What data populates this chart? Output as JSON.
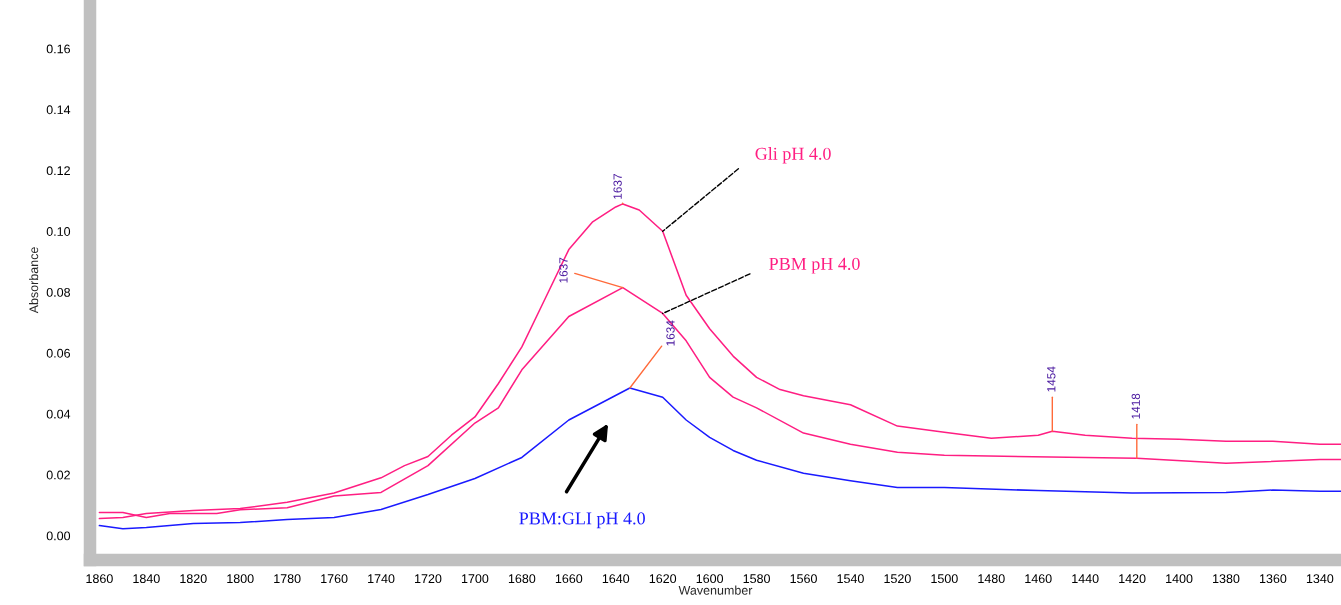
{
  "chart_data": {
    "type": "line",
    "xlabel": "Wavenumber",
    "ylabel": "Absorbance",
    "xlim": [
      1864,
      1331
    ],
    "ylim": [
      -0.008,
      0.176
    ],
    "xticks": [
      1860,
      1840,
      1820,
      1800,
      1780,
      1760,
      1740,
      1720,
      1700,
      1680,
      1660,
      1640,
      1620,
      1600,
      1580,
      1560,
      1540,
      1520,
      1500,
      1480,
      1460,
      1440,
      1420,
      1400,
      1380,
      1360,
      1340
    ],
    "yticks": [
      {
        "value": 0,
        "label": "0.00"
      },
      {
        "value": 0.02,
        "label": "0.02"
      },
      {
        "value": 0.04,
        "label": "0.04"
      },
      {
        "value": 0.06,
        "label": "0.06"
      },
      {
        "value": 0.08,
        "label": "0.08"
      },
      {
        "value": 0.1,
        "label": "0.10"
      },
      {
        "value": 0.12,
        "label": "0.12"
      },
      {
        "value": 0.14,
        "label": "0.14"
      },
      {
        "value": 0.16,
        "label": "0.16"
      }
    ],
    "grid": false,
    "legend": false,
    "marker": "none",
    "line_style": "solid",
    "series": [
      {
        "name": "Gli pH 4.0",
        "color": "#ff1e82",
        "x": [
          1860,
          1850,
          1840,
          1820,
          1800,
          1780,
          1760,
          1740,
          1730,
          1720,
          1710,
          1700,
          1690,
          1680,
          1670,
          1660,
          1650,
          1640,
          1637,
          1630,
          1620,
          1610,
          1600,
          1590,
          1580,
          1570,
          1560,
          1540,
          1520,
          1500,
          1480,
          1460,
          1454,
          1440,
          1420,
          1400,
          1380,
          1360,
          1340,
          1331
        ],
        "values": [
          0.0056,
          0.006,
          0.0073,
          0.0083,
          0.0089,
          0.011,
          0.014,
          0.019,
          0.023,
          0.026,
          0.033,
          0.039,
          0.05,
          0.062,
          0.078,
          0.094,
          0.103,
          0.108,
          0.109,
          0.107,
          0.1,
          0.079,
          0.068,
          0.059,
          0.052,
          0.048,
          0.046,
          0.043,
          0.036,
          0.034,
          0.032,
          0.033,
          0.0343,
          0.033,
          0.032,
          0.0317,
          0.031,
          0.031,
          0.03,
          0.03
        ]
      },
      {
        "name": "PBM pH 4.0",
        "color": "#ff1e82",
        "x": [
          1860,
          1850,
          1840,
          1830,
          1810,
          1800,
          1780,
          1760,
          1740,
          1720,
          1700,
          1690,
          1680,
          1660,
          1637,
          1620,
          1610,
          1600,
          1590,
          1580,
          1560,
          1540,
          1520,
          1500,
          1418,
          1380,
          1340,
          1331
        ],
        "values": [
          0.0076,
          0.0076,
          0.006,
          0.0073,
          0.0073,
          0.0085,
          0.0092,
          0.013,
          0.0142,
          0.023,
          0.037,
          0.042,
          0.0545,
          0.072,
          0.0815,
          0.073,
          0.064,
          0.052,
          0.0455,
          0.042,
          0.0337,
          0.03,
          0.0274,
          0.0264,
          0.0254,
          0.0238,
          0.025,
          0.025
        ]
      },
      {
        "name": "PBM:GLI pH 4.0",
        "color": "#1a1aff",
        "x": [
          1860,
          1850,
          1840,
          1820,
          1800,
          1780,
          1760,
          1740,
          1720,
          1700,
          1680,
          1660,
          1634,
          1620,
          1610,
          1600,
          1590,
          1580,
          1560,
          1540,
          1520,
          1500,
          1460,
          1420,
          1380,
          1360,
          1340,
          1331
        ],
        "values": [
          0.0033,
          0.0023,
          0.0027,
          0.004,
          0.0043,
          0.0053,
          0.006,
          0.0086,
          0.0135,
          0.0188,
          0.0257,
          0.038,
          0.0485,
          0.0455,
          0.038,
          0.0323,
          0.028,
          0.0248,
          0.0205,
          0.018,
          0.0158,
          0.0158,
          0.0148,
          0.014,
          0.0142,
          0.015,
          0.0146,
          0.0146
        ]
      }
    ],
    "annotations": [
      {
        "text": "1637",
        "x": 1637,
        "y": 0.109
      },
      {
        "text": "1637",
        "x": 1637,
        "y": 0.0815
      },
      {
        "text": "1634",
        "x": 1634,
        "y": 0.0485
      },
      {
        "text": "1454",
        "x": 1454,
        "y": 0.0343
      },
      {
        "text": "1418",
        "x": 1418,
        "y": 0.0254
      }
    ]
  }
}
